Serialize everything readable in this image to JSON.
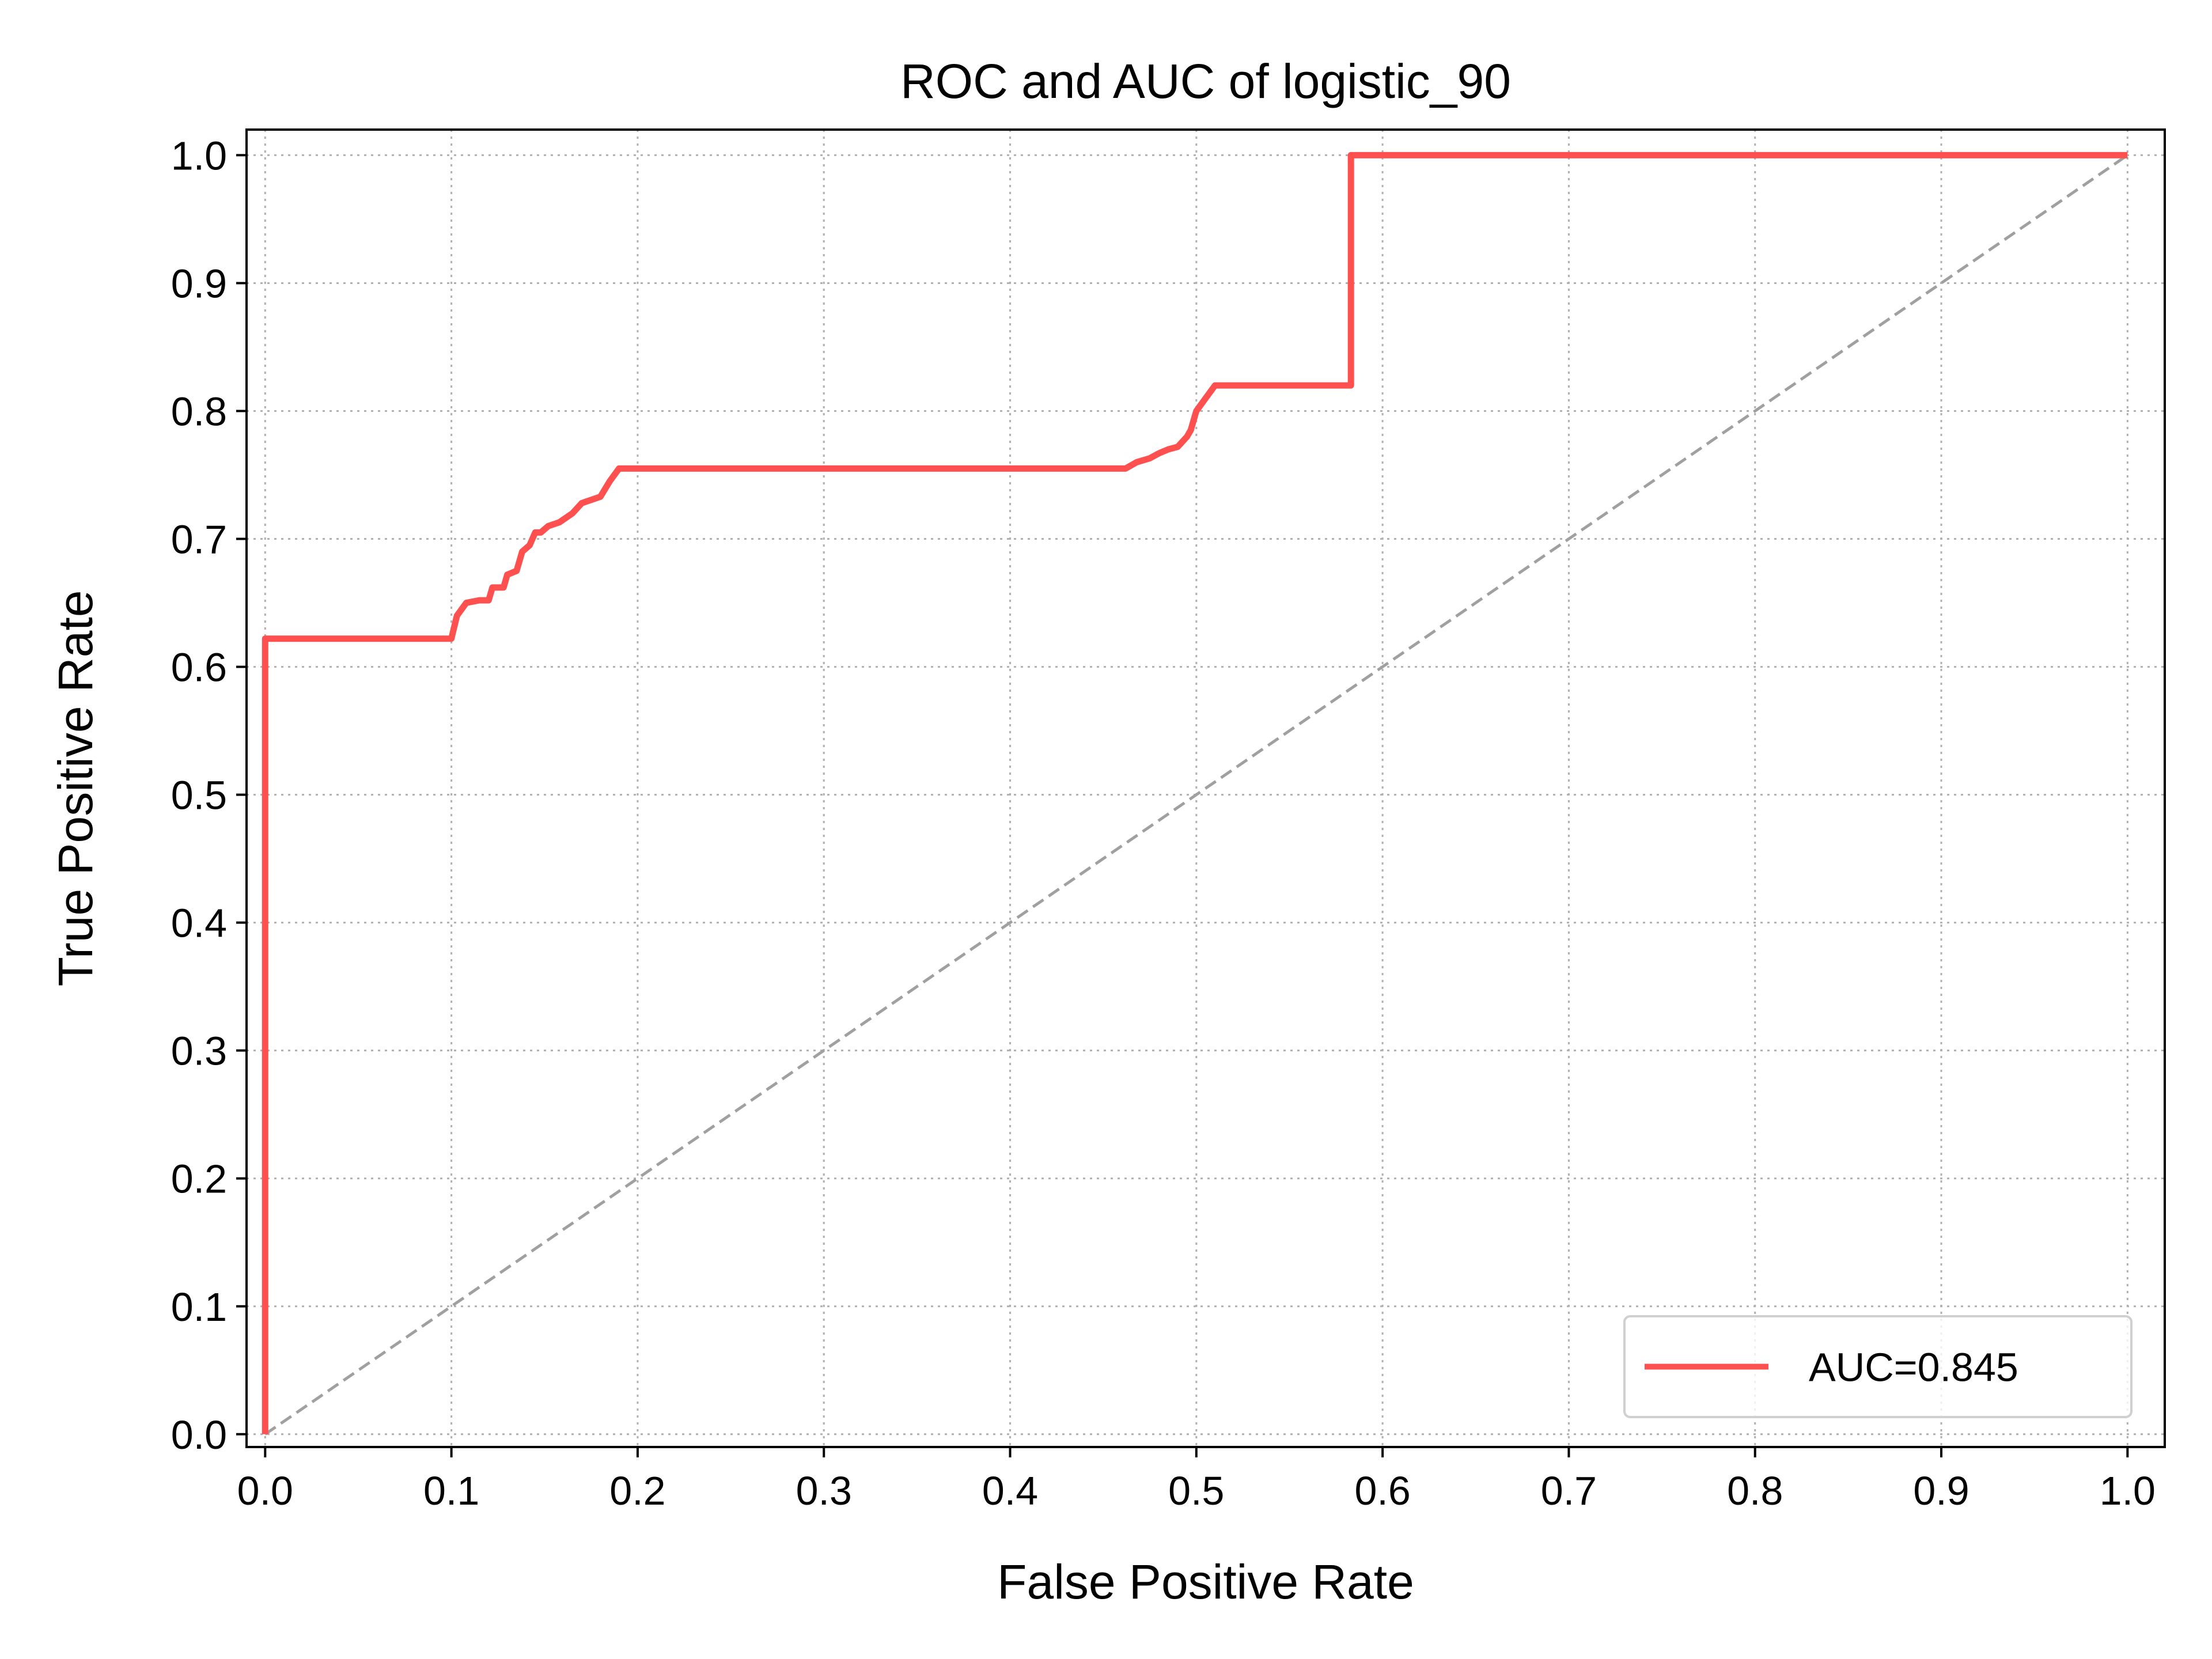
{
  "chart_data": {
    "type": "line",
    "title": "ROC and AUC of logistic_90",
    "xlabel": "False Positive Rate",
    "ylabel": "True Positive Rate",
    "xlim": [
      -0.01,
      1.02
    ],
    "ylim": [
      -0.01,
      1.02
    ],
    "xticks": [
      0.0,
      0.1,
      0.2,
      0.3,
      0.4,
      0.5,
      0.6,
      0.7,
      0.8,
      0.9,
      1.0
    ],
    "yticks": [
      0.0,
      0.1,
      0.2,
      0.3,
      0.4,
      0.5,
      0.6,
      0.7,
      0.8,
      0.9,
      1.0
    ],
    "xtick_labels": [
      "0.0",
      "0.1",
      "0.2",
      "0.3",
      "0.4",
      "0.5",
      "0.6",
      "0.7",
      "0.8",
      "0.9",
      "1.0"
    ],
    "ytick_labels": [
      "0.0",
      "0.1",
      "0.2",
      "0.3",
      "0.4",
      "0.5",
      "0.6",
      "0.7",
      "0.8",
      "0.9",
      "1.0"
    ],
    "grid": true,
    "legend_position": "lower right",
    "series": [
      {
        "name": "AUC=0.845",
        "color": "#ff5050",
        "style": "solid",
        "x": [
          0.0,
          0.0,
          0.1,
          0.103,
          0.108,
          0.115,
          0.12,
          0.122,
          0.128,
          0.13,
          0.135,
          0.138,
          0.142,
          0.145,
          0.148,
          0.152,
          0.158,
          0.165,
          0.17,
          0.18,
          0.185,
          0.19,
          0.2,
          0.3,
          0.4,
          0.462,
          0.468,
          0.475,
          0.48,
          0.485,
          0.49,
          0.495,
          0.497,
          0.5,
          0.505,
          0.51,
          0.55,
          0.583,
          0.583,
          0.7,
          0.8,
          0.9,
          1.0
        ],
        "y": [
          0.0,
          0.622,
          0.622,
          0.64,
          0.65,
          0.652,
          0.652,
          0.662,
          0.662,
          0.672,
          0.675,
          0.69,
          0.695,
          0.705,
          0.705,
          0.71,
          0.713,
          0.72,
          0.728,
          0.733,
          0.745,
          0.755,
          0.755,
          0.755,
          0.755,
          0.755,
          0.76,
          0.763,
          0.767,
          0.77,
          0.772,
          0.78,
          0.785,
          0.8,
          0.81,
          0.82,
          0.82,
          0.82,
          1.0,
          1.0,
          1.0,
          1.0,
          1.0
        ]
      },
      {
        "name": "",
        "color": "#a0a0a0",
        "style": "dashed",
        "x": [
          0.0,
          1.0
        ],
        "y": [
          0.0,
          1.0
        ]
      }
    ]
  }
}
